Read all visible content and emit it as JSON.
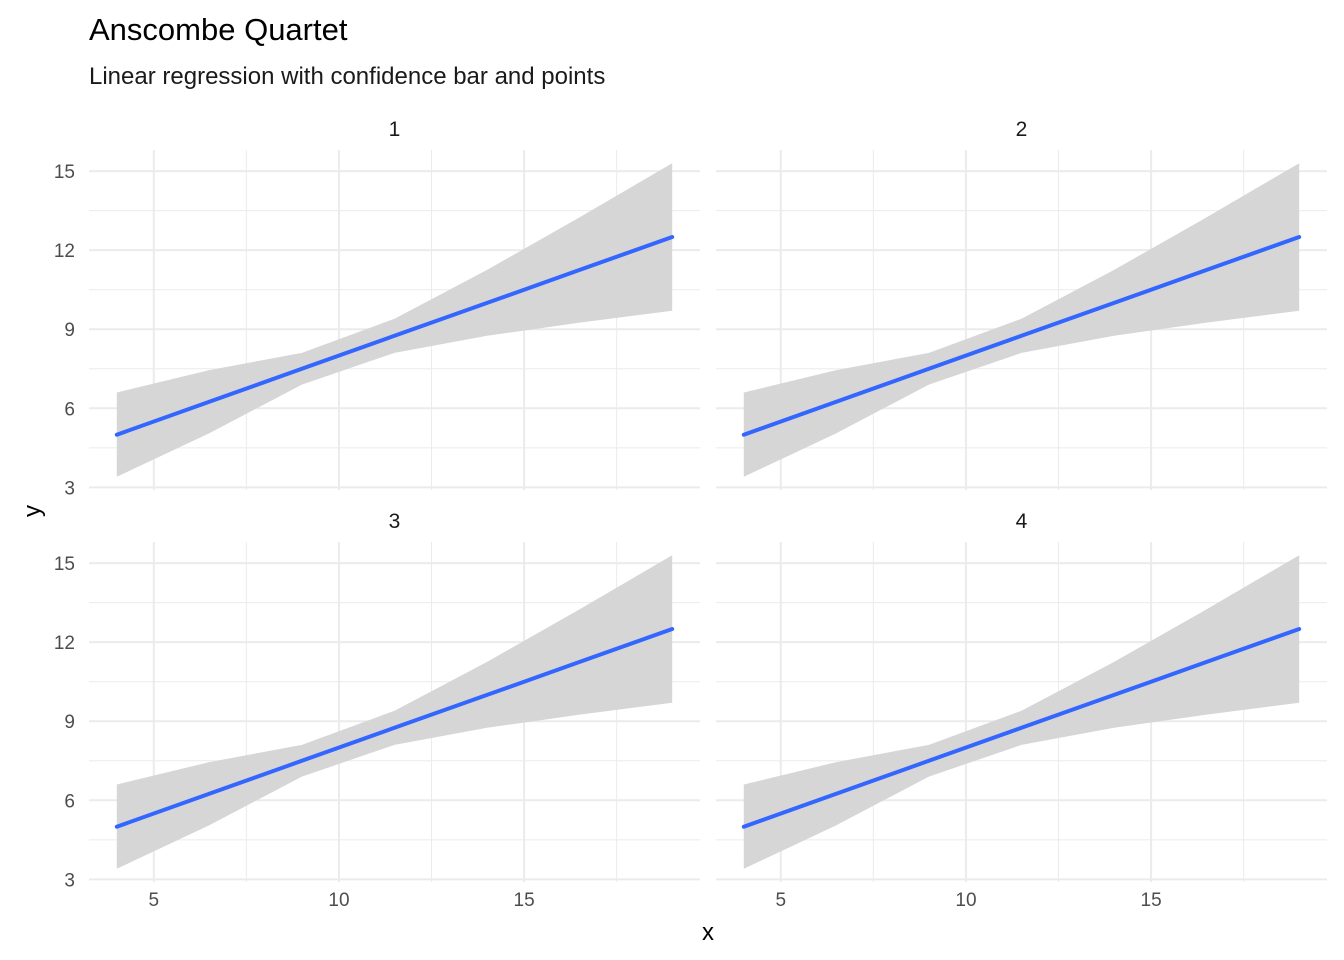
{
  "chart_data": {
    "type": "line",
    "title": "Anscombe Quartet",
    "subtitle": "Linear regression with confidence bar and points",
    "xlabel": "x",
    "ylabel": "y",
    "xlim": [
      3.25,
      19.75
    ],
    "ylim": [
      2.9,
      15.8
    ],
    "x_ticks": [
      5,
      10,
      15
    ],
    "y_ticks": [
      3,
      6,
      9,
      12,
      15
    ],
    "grid": true,
    "legend": "none",
    "colors": {
      "line": "#3366FF",
      "band": "#D6D6D6",
      "grid": "#EBEBEB"
    },
    "panels": [
      {
        "label": "1",
        "x": [
          4,
          6.5,
          9,
          11.5,
          14,
          16.5,
          19
        ],
        "fit": [
          5.0,
          6.25,
          7.5,
          8.75,
          10.0,
          11.25,
          12.5
        ],
        "ci_lower": [
          3.4,
          5.05,
          6.9,
          8.1,
          8.75,
          9.25,
          9.7
        ],
        "ci_upper": [
          6.6,
          7.45,
          8.1,
          9.4,
          11.25,
          13.25,
          15.3
        ]
      },
      {
        "label": "2",
        "x": [
          4,
          6.5,
          9,
          11.5,
          14,
          16.5,
          19
        ],
        "fit": [
          5.0,
          6.25,
          7.5,
          8.75,
          10.0,
          11.25,
          12.5
        ],
        "ci_lower": [
          3.4,
          5.05,
          6.9,
          8.1,
          8.75,
          9.25,
          9.7
        ],
        "ci_upper": [
          6.6,
          7.45,
          8.1,
          9.4,
          11.25,
          13.25,
          15.3
        ]
      },
      {
        "label": "3",
        "x": [
          4,
          6.5,
          9,
          11.5,
          14,
          16.5,
          19
        ],
        "fit": [
          5.0,
          6.25,
          7.5,
          8.75,
          10.0,
          11.25,
          12.5
        ],
        "ci_lower": [
          3.4,
          5.05,
          6.9,
          8.1,
          8.75,
          9.25,
          9.7
        ],
        "ci_upper": [
          6.6,
          7.45,
          8.1,
          9.4,
          11.25,
          13.25,
          15.3
        ]
      },
      {
        "label": "4",
        "x": [
          4,
          6.5,
          9,
          11.5,
          14,
          16.5,
          19
        ],
        "fit": [
          5.0,
          6.25,
          7.5,
          8.75,
          10.0,
          11.25,
          12.5
        ],
        "ci_lower": [
          3.4,
          5.05,
          6.9,
          8.1,
          8.75,
          9.25,
          9.7
        ],
        "ci_upper": [
          6.6,
          7.45,
          8.1,
          9.4,
          11.25,
          13.25,
          15.3
        ]
      }
    ]
  }
}
